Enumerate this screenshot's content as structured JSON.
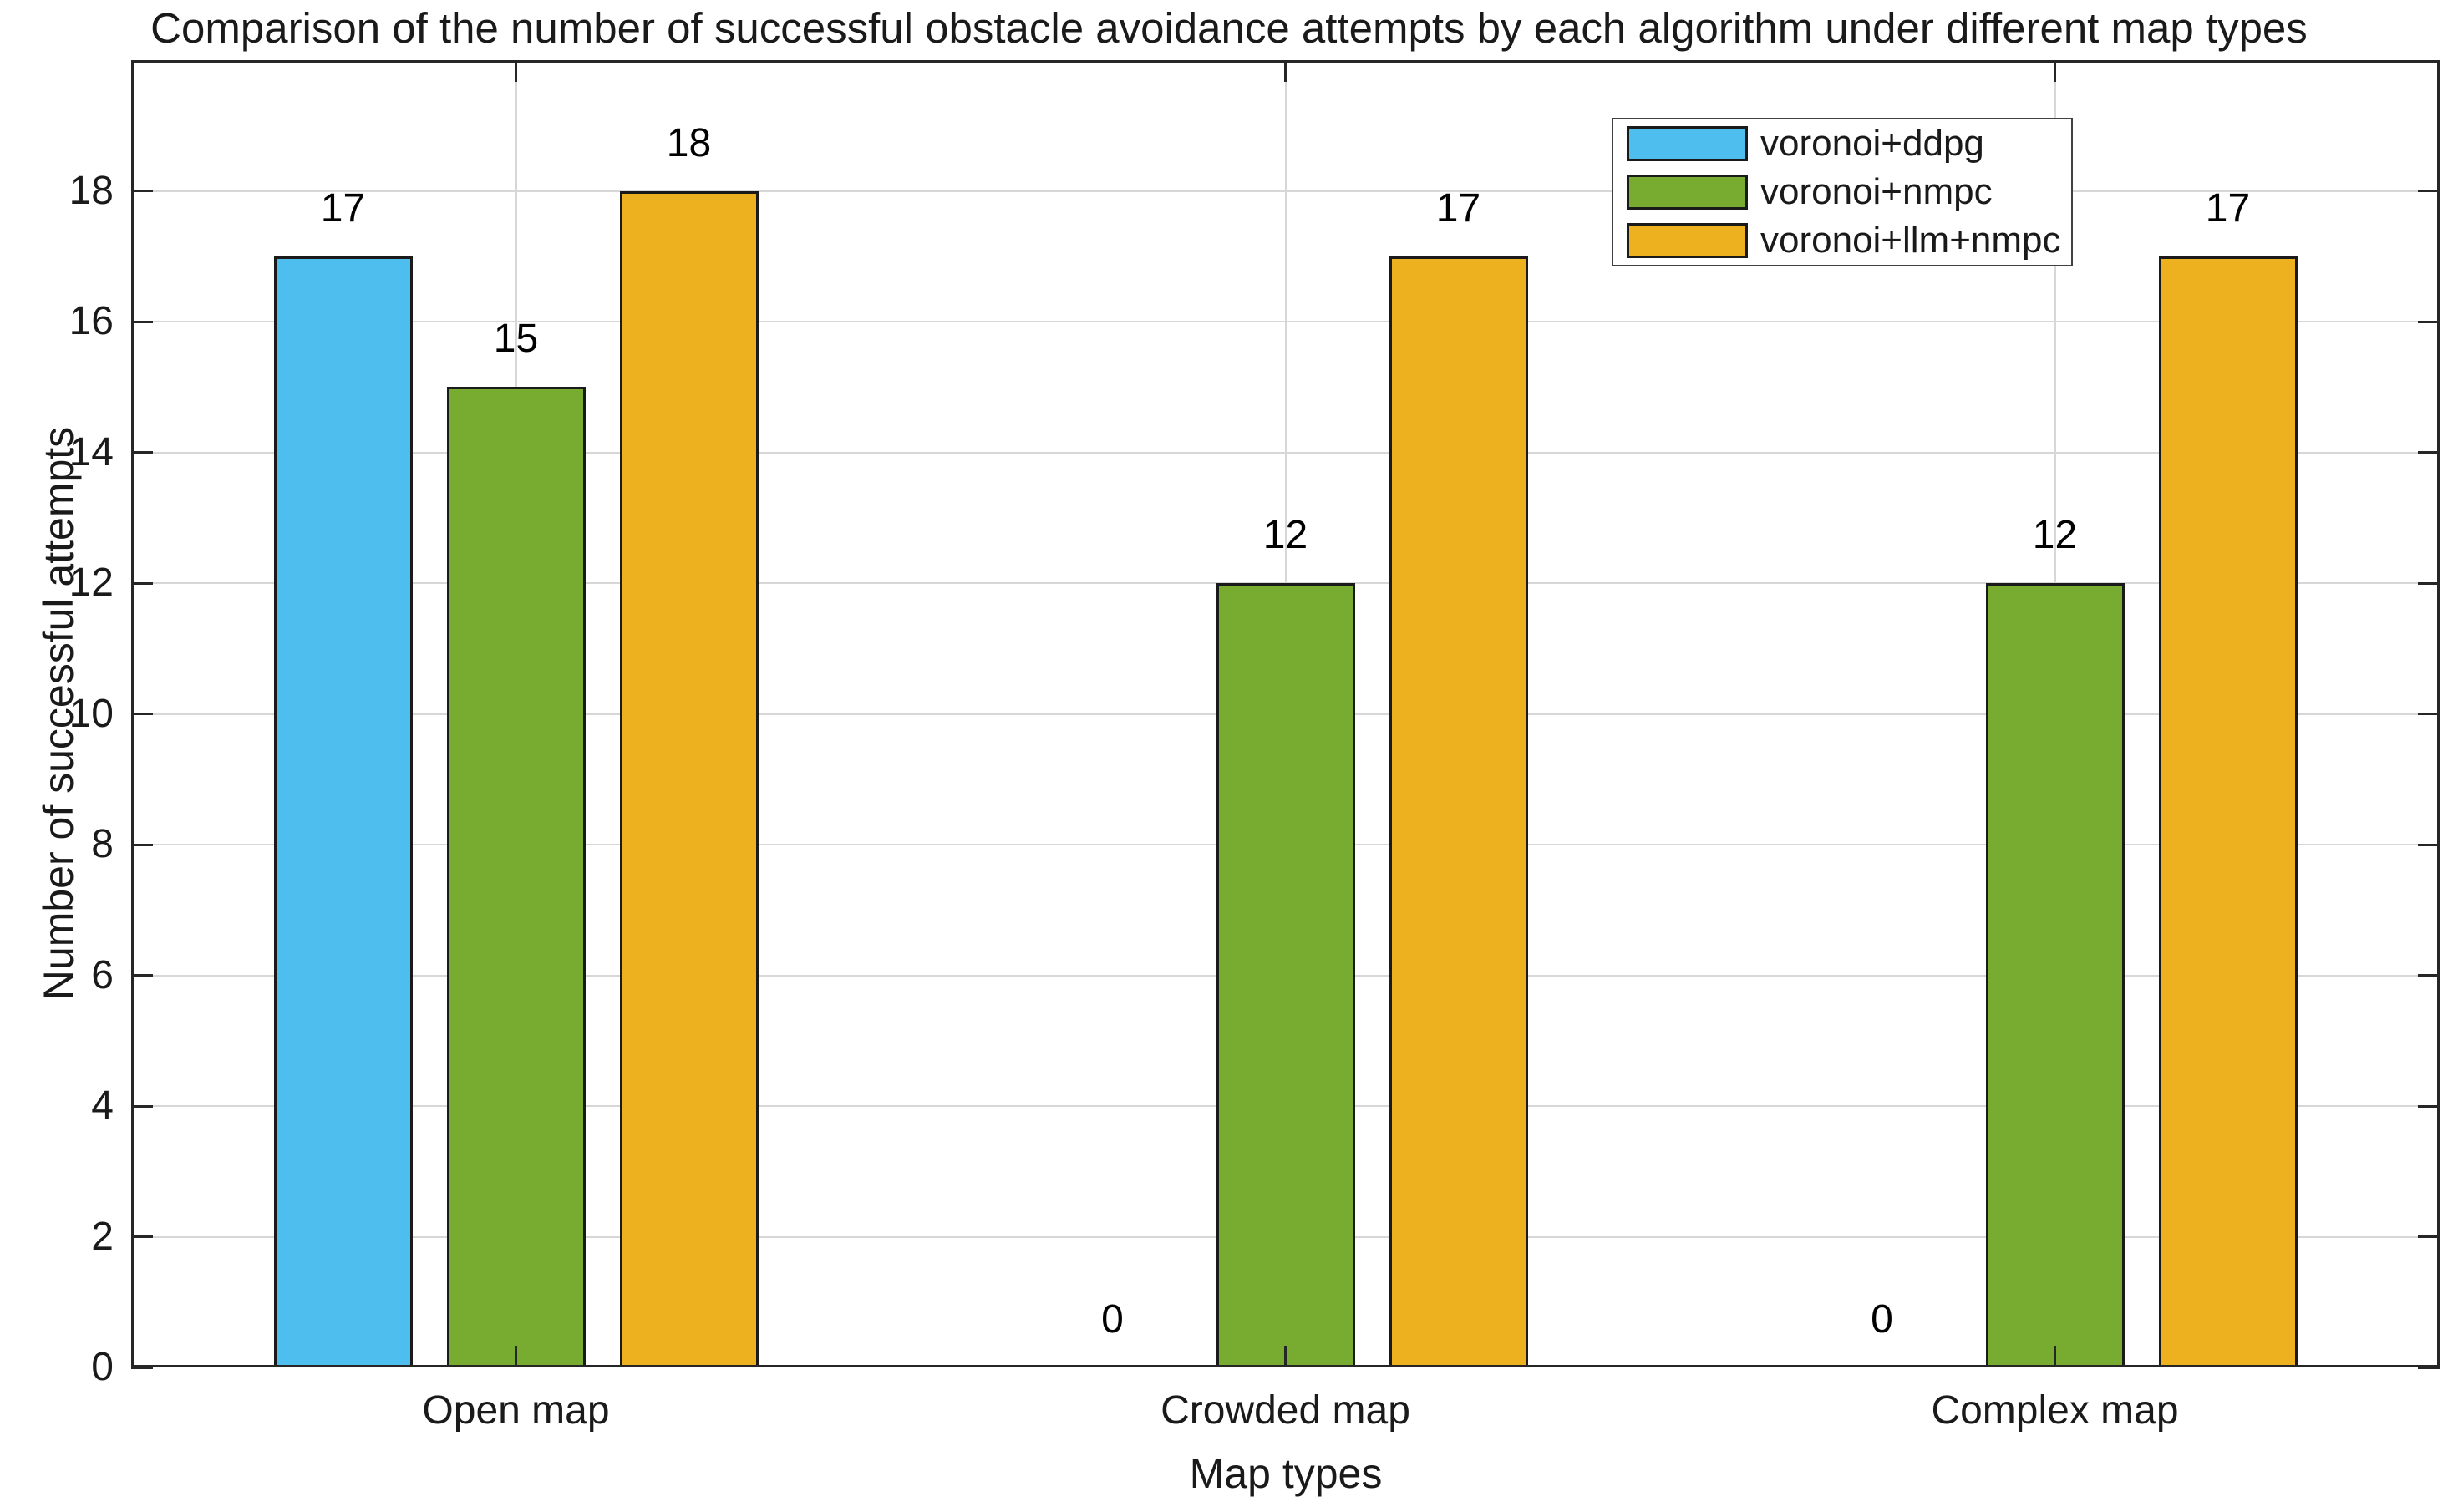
{
  "chart_data": {
    "type": "bar",
    "title": "Comparison of the number of successful obstacle avoidance attempts by each algorithm under different map types",
    "xlabel": "Map types",
    "ylabel": "Number of successful attempts",
    "categories": [
      "Open map",
      "Crowded map",
      "Complex map"
    ],
    "series": [
      {
        "name": "voronoi+ddpg",
        "color": "#4DBEEE",
        "values": [
          17,
          0,
          0
        ]
      },
      {
        "name": "voronoi+nmpc",
        "color": "#77AC30",
        "values": [
          15,
          12,
          12
        ]
      },
      {
        "name": "voronoi+llm+nmpc",
        "color": "#EDB120",
        "values": [
          18,
          17,
          17
        ]
      }
    ],
    "bar_value_labels": [
      [
        "17",
        "15",
        "18"
      ],
      [
        "0",
        "12",
        "17"
      ],
      [
        "0",
        "12",
        "17"
      ]
    ],
    "ylim": [
      0,
      20
    ],
    "yticks": [
      "0",
      "2",
      "4",
      "6",
      "8",
      "10",
      "12",
      "14",
      "16",
      "18"
    ],
    "grid": "both",
    "legend_position": "top-right",
    "colors": {
      "bar_edge": "#1a1a1a",
      "axis_box": "#262626",
      "gridline": "#d7d7d7",
      "text": "#1a1a1a",
      "background": "#ffffff"
    }
  }
}
